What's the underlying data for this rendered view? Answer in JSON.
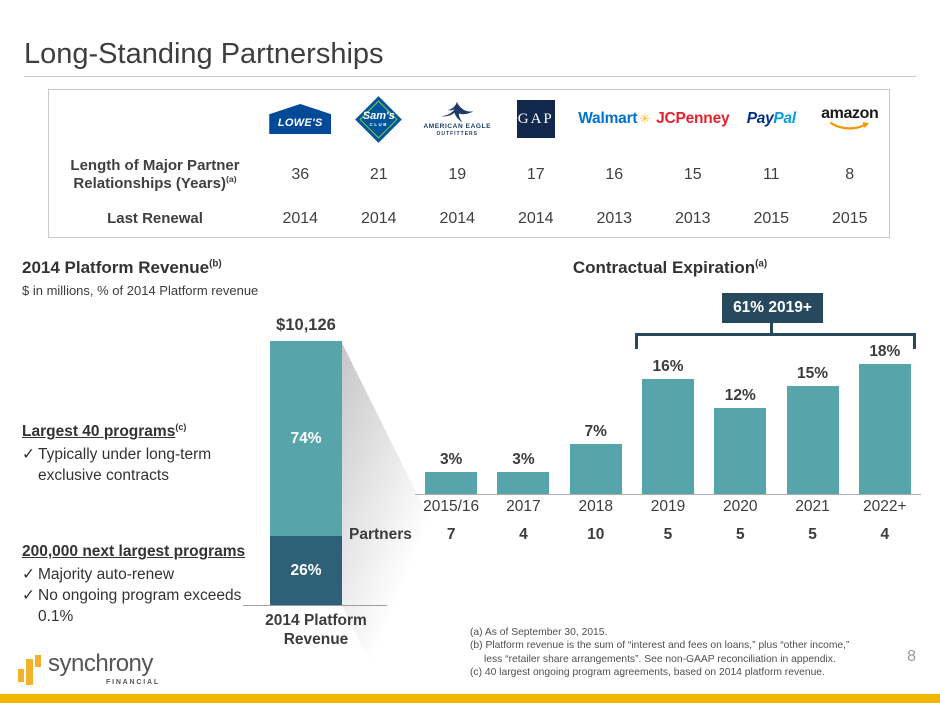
{
  "slide": {
    "title": "Long-Standing Partnerships",
    "page_number": "8"
  },
  "icons": {
    "check": "✓",
    "walmart_spark": "✳"
  },
  "partners_table": {
    "row_labels": {
      "years": "Length of Major Partner Relationships (Years)",
      "years_sup": "(a)",
      "renewal": "Last Renewal"
    },
    "partners": [
      {
        "name": "Lowe's",
        "logo_text": "LOWE'S",
        "years": "36",
        "renewal": "2014"
      },
      {
        "name": "Sam's Club",
        "logo_text": "Sam's",
        "logo_sub": "CLUB",
        "years": "21",
        "renewal": "2014"
      },
      {
        "name": "American Eagle Outfitters",
        "logo_text": "AMERICAN EAGLE",
        "logo_sub": "OUTFITTERS",
        "years": "19",
        "renewal": "2014"
      },
      {
        "name": "Gap",
        "logo_text": "GAP",
        "years": "17",
        "renewal": "2014"
      },
      {
        "name": "Walmart",
        "logo_text": "Walmart",
        "years": "16",
        "renewal": "2013"
      },
      {
        "name": "JCPenney",
        "logo_text": "JCPenney",
        "years": "15",
        "renewal": "2013"
      },
      {
        "name": "PayPal",
        "logo_text_pay": "Pay",
        "logo_text_pal": "Pal",
        "years": "11",
        "renewal": "2015"
      },
      {
        "name": "Amazon",
        "logo_text": "amazon",
        "years": "8",
        "renewal": "2015"
      }
    ]
  },
  "chart_data": [
    {
      "type": "bar",
      "variant": "single-stacked-column",
      "title": "2014 Platform Revenue",
      "title_sup": "(b)",
      "subtitle": "$ in millions, % of 2014 Platform revenue",
      "total_label": "$10,126",
      "axis_caption": "2014 Platform Revenue",
      "segments": [
        {
          "name": "Largest 40 programs",
          "pct": 74,
          "label": "74%",
          "color": "#57a5ab"
        },
        {
          "name": "200,000 next largest programs",
          "pct": 26,
          "label": "26%",
          "color": "#2e6077"
        }
      ],
      "ylim": [
        0,
        100
      ]
    },
    {
      "type": "bar",
      "title": "Contractual Expiration",
      "title_sup": "(a)",
      "categories": [
        "2015/16",
        "2017",
        "2018",
        "2019",
        "2020",
        "2021",
        "2022+"
      ],
      "values": [
        3,
        3,
        7,
        16,
        12,
        15,
        18
      ],
      "value_labels": [
        "3%",
        "3%",
        "7%",
        "16%",
        "12%",
        "15%",
        "18%"
      ],
      "partners_row_label": "Partners",
      "partners": [
        "7",
        "4",
        "10",
        "5",
        "5",
        "5",
        "4"
      ],
      "annotation": "61% 2019+",
      "annotation_span": [
        "2019",
        "2022+"
      ],
      "bar_color": "#57a5ab",
      "ylim": [
        0,
        20
      ],
      "grid": false,
      "legend": false
    }
  ],
  "left_notes": [
    {
      "heading": "Largest 40 programs",
      "heading_sup": "(c)",
      "bullets": [
        "Typically under long-term exclusive contracts"
      ]
    },
    {
      "heading": "200,000 next largest programs",
      "heading_sup": "",
      "bullets": [
        "Majority auto-renew",
        "No ongoing program exceeds 0.1%"
      ]
    }
  ],
  "footnotes": [
    "(a) As of September 30, 2015.",
    "(b) Platform revenue is the sum of “interest and fees on loans,” plus “other income,”",
    "less “retailer share arrangements”.  See non-GAAP reconciliation in appendix.",
    "(c) 40 largest ongoing program agreements, based on 2014 platform revenue."
  ],
  "brand": {
    "name": "synchrony",
    "sub": "FINANCIAL"
  }
}
